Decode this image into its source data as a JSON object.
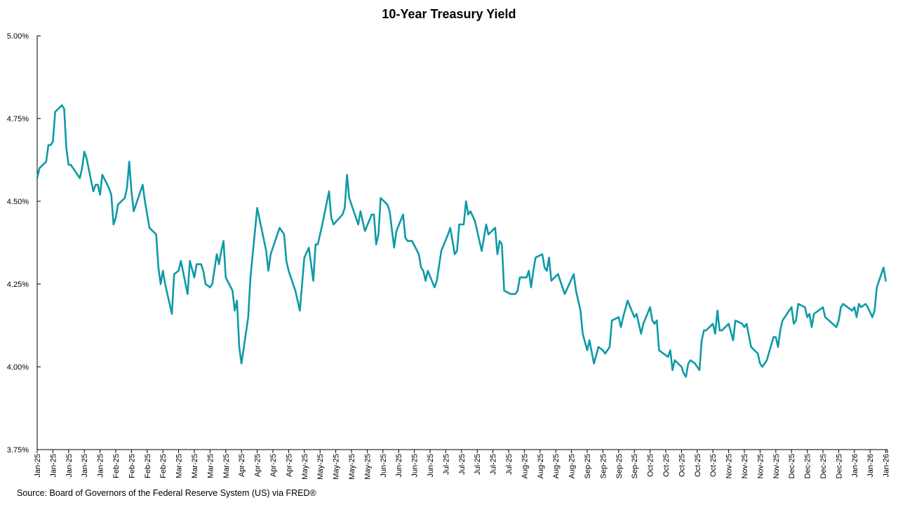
{
  "chart_data": {
    "type": "line",
    "title": "10-Year Treasury Yield",
    "source": "Source: Board of Governors of the Federal Reserve System (US) via FRED®",
    "xlabel": "",
    "ylabel": "",
    "ylim": [
      3.75,
      5.0
    ],
    "yticks": [
      "3.75%",
      "4.00%",
      "4.25%",
      "4.50%",
      "4.75%",
      "5.00%"
    ],
    "ytick_values": [
      3.75,
      4.0,
      4.25,
      4.5,
      4.75,
      5.0
    ],
    "xticks": [
      "Jan-25",
      "Jan-25",
      "Jan-25",
      "Jan-25",
      "Jan-25",
      "Feb-25",
      "Feb-25",
      "Feb-25",
      "Feb-25",
      "Mar-25",
      "Mar-25",
      "Mar-25",
      "Mar-25",
      "Apr-25",
      "Apr-25",
      "Apr-25",
      "Apr-25",
      "May-25",
      "May-25",
      "May-25",
      "May-25",
      "May-25",
      "Jun-25",
      "Jun-25",
      "Jun-25",
      "Jun-25",
      "Jul-25",
      "Jul-25",
      "Jul-25",
      "Jul-25",
      "Jul-25",
      "Aug-25",
      "Aug-25",
      "Aug-25",
      "Aug-25",
      "Sep-25",
      "Sep-25",
      "Sep-25",
      "Sep-25",
      "Oct-25",
      "Oct-25",
      "Oct-25",
      "Oct-25",
      "Oct-25",
      "Nov-25",
      "Nov-25",
      "Nov-25",
      "Nov-25",
      "Dec-25",
      "Dec-25",
      "Dec-25",
      "Dec-25",
      "Jan-26",
      "Jan-26",
      "Jan-26"
    ],
    "grid": false,
    "legend": "none",
    "line_color": "#0e9aa7",
    "series": [
      {
        "points": [
          [
            "2025-01-02",
            4.57
          ],
          [
            "2025-01-03",
            4.6
          ],
          [
            "2025-01-06",
            4.62
          ],
          [
            "2025-01-07",
            4.67
          ],
          [
            "2025-01-08",
            4.67
          ],
          [
            "2025-01-09",
            4.68
          ],
          [
            "2025-01-10",
            4.77
          ],
          [
            "2025-01-13",
            4.79
          ],
          [
            "2025-01-14",
            4.78
          ],
          [
            "2025-01-15",
            4.66
          ],
          [
            "2025-01-16",
            4.61
          ],
          [
            "2025-01-17",
            4.61
          ],
          [
            "2025-01-21",
            4.57
          ],
          [
            "2025-01-22",
            4.6
          ],
          [
            "2025-01-23",
            4.65
          ],
          [
            "2025-01-24",
            4.63
          ],
          [
            "2025-01-27",
            4.53
          ],
          [
            "2025-01-28",
            4.55
          ],
          [
            "2025-01-29",
            4.55
          ],
          [
            "2025-01-30",
            4.52
          ],
          [
            "2025-01-31",
            4.58
          ],
          [
            "2025-02-03",
            4.54
          ],
          [
            "2025-02-04",
            4.52
          ],
          [
            "2025-02-05",
            4.43
          ],
          [
            "2025-02-06",
            4.45
          ],
          [
            "2025-02-07",
            4.49
          ],
          [
            "2025-02-10",
            4.51
          ],
          [
            "2025-02-11",
            4.54
          ],
          [
            "2025-02-12",
            4.62
          ],
          [
            "2025-02-13",
            4.53
          ],
          [
            "2025-02-14",
            4.47
          ],
          [
            "2025-02-18",
            4.55
          ],
          [
            "2025-02-19",
            4.5
          ],
          [
            "2025-02-21",
            4.42
          ],
          [
            "2025-02-24",
            4.4
          ],
          [
            "2025-02-25",
            4.3
          ],
          [
            "2025-02-26",
            4.25
          ],
          [
            "2025-02-27",
            4.29
          ],
          [
            "2025-02-28",
            4.25
          ],
          [
            "2025-03-03",
            4.16
          ],
          [
            "2025-03-04",
            4.28
          ],
          [
            "2025-03-06",
            4.29
          ],
          [
            "2025-03-07",
            4.32
          ],
          [
            "2025-03-10",
            4.22
          ],
          [
            "2025-03-11",
            4.32
          ],
          [
            "2025-03-13",
            4.27
          ],
          [
            "2025-03-14",
            4.31
          ],
          [
            "2025-03-16",
            4.31
          ],
          [
            "2025-03-17",
            4.29
          ],
          [
            "2025-03-18",
            4.25
          ],
          [
            "2025-03-20",
            4.24
          ],
          [
            "2025-03-21",
            4.25
          ],
          [
            "2025-03-23",
            4.34
          ],
          [
            "2025-03-24",
            4.31
          ],
          [
            "2025-03-25",
            4.35
          ],
          [
            "2025-03-26",
            4.38
          ],
          [
            "2025-03-27",
            4.27
          ],
          [
            "2025-03-30",
            4.23
          ],
          [
            "2025-03-31",
            4.17
          ],
          [
            "2025-04-01",
            4.2
          ],
          [
            "2025-04-02",
            4.06
          ],
          [
            "2025-04-03",
            4.01
          ],
          [
            "2025-04-06",
            4.15
          ],
          [
            "2025-04-07",
            4.27
          ],
          [
            "2025-04-10",
            4.48
          ],
          [
            "2025-04-14",
            4.35
          ],
          [
            "2025-04-15",
            4.29
          ],
          [
            "2025-04-16",
            4.34
          ],
          [
            "2025-04-20",
            4.42
          ],
          [
            "2025-04-22",
            4.4
          ],
          [
            "2025-04-23",
            4.32
          ],
          [
            "2025-04-24",
            4.29
          ],
          [
            "2025-04-27",
            4.23
          ],
          [
            "2025-04-29",
            4.17
          ],
          [
            "2025-05-01",
            4.33
          ],
          [
            "2025-05-03",
            4.36
          ],
          [
            "2025-05-05",
            4.26
          ],
          [
            "2025-05-06",
            4.37
          ],
          [
            "2025-05-07",
            4.37
          ],
          [
            "2025-05-09",
            4.43
          ],
          [
            "2025-05-12",
            4.53
          ],
          [
            "2025-05-13",
            4.45
          ],
          [
            "2025-05-14",
            4.43
          ],
          [
            "2025-05-18",
            4.46
          ],
          [
            "2025-05-19",
            4.48
          ],
          [
            "2025-05-20",
            4.58
          ],
          [
            "2025-05-21",
            4.51
          ],
          [
            "2025-05-25",
            4.43
          ],
          [
            "2025-05-26",
            4.47
          ],
          [
            "2025-05-28",
            4.41
          ],
          [
            "2025-05-31",
            4.46
          ],
          [
            "2025-06-01",
            4.46
          ],
          [
            "2025-06-02",
            4.37
          ],
          [
            "2025-06-03",
            4.4
          ],
          [
            "2025-06-04",
            4.51
          ],
          [
            "2025-06-07",
            4.49
          ],
          [
            "2025-06-08",
            4.47
          ],
          [
            "2025-06-10",
            4.36
          ],
          [
            "2025-06-11",
            4.41
          ],
          [
            "2025-06-14",
            4.46
          ],
          [
            "2025-06-15",
            4.39
          ],
          [
            "2025-06-16",
            4.38
          ],
          [
            "2025-06-18",
            4.38
          ],
          [
            "2025-06-21",
            4.34
          ],
          [
            "2025-06-22",
            4.3
          ],
          [
            "2025-06-23",
            4.29
          ],
          [
            "2025-06-24",
            4.26
          ],
          [
            "2025-06-25",
            4.29
          ],
          [
            "2025-06-28",
            4.24
          ],
          [
            "2025-06-29",
            4.26
          ],
          [
            "2025-07-01",
            4.35
          ],
          [
            "2025-07-04",
            4.4
          ],
          [
            "2025-07-05",
            4.42
          ],
          [
            "2025-07-07",
            4.34
          ],
          [
            "2025-07-08",
            4.35
          ],
          [
            "2025-07-09",
            4.43
          ],
          [
            "2025-07-11",
            4.43
          ],
          [
            "2025-07-12",
            4.5
          ],
          [
            "2025-07-13",
            4.46
          ],
          [
            "2025-07-14",
            4.47
          ],
          [
            "2025-07-16",
            4.44
          ],
          [
            "2025-07-18",
            4.38
          ],
          [
            "2025-07-19",
            4.35
          ],
          [
            "2025-07-21",
            4.43
          ],
          [
            "2025-07-22",
            4.4
          ],
          [
            "2025-07-25",
            4.42
          ],
          [
            "2025-07-26",
            4.34
          ],
          [
            "2025-07-27",
            4.38
          ],
          [
            "2025-07-28",
            4.37
          ],
          [
            "2025-07-29",
            4.23
          ],
          [
            "2025-08-01",
            4.22
          ],
          [
            "2025-08-03",
            4.22
          ],
          [
            "2025-08-04",
            4.23
          ],
          [
            "2025-08-05",
            4.27
          ],
          [
            "2025-08-08",
            4.27
          ],
          [
            "2025-08-09",
            4.29
          ],
          [
            "2025-08-10",
            4.24
          ],
          [
            "2025-08-11",
            4.29
          ],
          [
            "2025-08-12",
            4.33
          ],
          [
            "2025-08-15",
            4.34
          ],
          [
            "2025-08-16",
            4.3
          ],
          [
            "2025-08-17",
            4.29
          ],
          [
            "2025-08-18",
            4.33
          ],
          [
            "2025-08-19",
            4.26
          ],
          [
            "2025-08-22",
            4.28
          ],
          [
            "2025-08-25",
            4.22
          ],
          [
            "2025-08-29",
            4.28
          ],
          [
            "2025-08-30",
            4.23
          ],
          [
            "2025-09-01",
            4.17
          ],
          [
            "2025-09-02",
            4.1
          ],
          [
            "2025-09-04",
            4.05
          ],
          [
            "2025-09-05",
            4.08
          ],
          [
            "2025-09-07",
            4.01
          ],
          [
            "2025-09-09",
            4.06
          ],
          [
            "2025-09-11",
            4.05
          ],
          [
            "2025-09-12",
            4.04
          ],
          [
            "2025-09-14",
            4.06
          ],
          [
            "2025-09-15",
            4.14
          ],
          [
            "2025-09-18",
            4.15
          ],
          [
            "2025-09-19",
            4.12
          ],
          [
            "2025-09-20",
            4.15
          ],
          [
            "2025-09-22",
            4.2
          ],
          [
            "2025-09-25",
            4.15
          ],
          [
            "2025-09-26",
            4.16
          ],
          [
            "2025-09-28",
            4.1
          ],
          [
            "2025-09-29",
            4.13
          ],
          [
            "2025-10-02",
            4.18
          ],
          [
            "2025-10-03",
            4.14
          ],
          [
            "2025-10-04",
            4.13
          ],
          [
            "2025-10-05",
            4.14
          ],
          [
            "2025-10-06",
            4.05
          ],
          [
            "2025-10-10",
            4.03
          ],
          [
            "2025-10-11",
            4.05
          ],
          [
            "2025-10-12",
            3.99
          ],
          [
            "2025-10-13",
            4.02
          ],
          [
            "2025-10-16",
            4.0
          ],
          [
            "2025-10-17",
            3.98
          ],
          [
            "2025-10-18",
            3.97
          ],
          [
            "2025-10-19",
            4.01
          ],
          [
            "2025-10-20",
            4.02
          ],
          [
            "2025-10-22",
            4.01
          ],
          [
            "2025-10-24",
            3.99
          ],
          [
            "2025-10-25",
            4.08
          ],
          [
            "2025-10-26",
            4.11
          ],
          [
            "2025-10-27",
            4.11
          ],
          [
            "2025-10-30",
            4.13
          ],
          [
            "2025-10-31",
            4.1
          ],
          [
            "2025-11-01",
            4.17
          ],
          [
            "2025-11-02",
            4.11
          ],
          [
            "2025-11-03",
            4.11
          ],
          [
            "2025-11-06",
            4.13
          ],
          [
            "2025-11-08",
            4.08
          ],
          [
            "2025-11-09",
            4.14
          ],
          [
            "2025-11-12",
            4.13
          ],
          [
            "2025-11-13",
            4.12
          ],
          [
            "2025-11-14",
            4.13
          ],
          [
            "2025-11-16",
            4.06
          ],
          [
            "2025-11-19",
            4.04
          ],
          [
            "2025-11-20",
            4.01
          ],
          [
            "2025-11-21",
            4.0
          ],
          [
            "2025-11-23",
            4.02
          ],
          [
            "2025-11-26",
            4.09
          ],
          [
            "2025-11-27",
            4.09
          ],
          [
            "2025-11-28",
            4.06
          ],
          [
            "2025-11-29",
            4.11
          ],
          [
            "2025-11-30",
            4.14
          ],
          [
            "2025-12-04",
            4.18
          ],
          [
            "2025-12-05",
            4.13
          ],
          [
            "2025-12-06",
            4.14
          ],
          [
            "2025-12-07",
            4.19
          ],
          [
            "2025-12-10",
            4.18
          ],
          [
            "2025-12-11",
            4.15
          ],
          [
            "2025-12-12",
            4.16
          ],
          [
            "2025-12-13",
            4.12
          ],
          [
            "2025-12-14",
            4.16
          ],
          [
            "2025-12-16",
            4.17
          ],
          [
            "2025-12-18",
            4.18
          ],
          [
            "2025-12-19",
            4.15
          ],
          [
            "2025-12-24",
            4.12
          ],
          [
            "2025-12-25",
            4.14
          ],
          [
            "2025-12-26",
            4.18
          ],
          [
            "2025-12-27",
            4.19
          ],
          [
            "2025-12-31",
            4.17
          ],
          [
            "2026-01-01",
            4.18
          ],
          [
            "2026-01-02",
            4.15
          ],
          [
            "2026-01-03",
            4.19
          ],
          [
            "2026-01-04",
            4.18
          ],
          [
            "2026-01-06",
            4.19
          ],
          [
            "2026-01-07",
            4.18
          ],
          [
            "2026-01-09",
            4.15
          ],
          [
            "2026-01-10",
            4.17
          ],
          [
            "2026-01-11",
            4.24
          ],
          [
            "2026-01-14",
            4.3
          ],
          [
            "2026-01-15",
            4.26
          ]
        ]
      }
    ]
  }
}
